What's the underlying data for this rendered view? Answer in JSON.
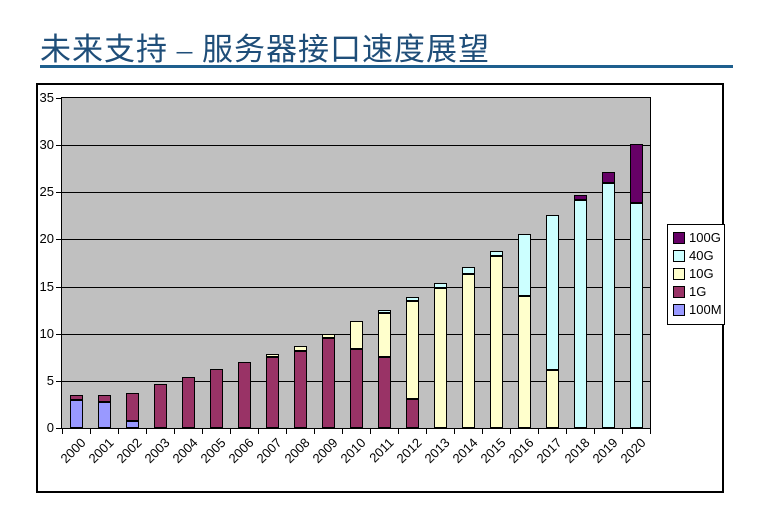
{
  "slide": {
    "title": "未来支持 – 服务器接口速度展望"
  },
  "theme": {
    "title_color": "#1F4E79",
    "rule_color": "#1E5F8E",
    "plot_background": "#C0C0C0",
    "gridline_color": "#000000"
  },
  "chart_data": {
    "type": "bar",
    "stacked": true,
    "title": "",
    "xlabel": "",
    "ylabel": "",
    "categories": [
      "2000",
      "2001",
      "2002",
      "2003",
      "2004",
      "2005",
      "2006",
      "2007",
      "2008",
      "2009",
      "2010",
      "2011",
      "2012",
      "2013",
      "2014",
      "2015",
      "2016",
      "2017",
      "2018",
      "2019",
      "2020"
    ],
    "series": [
      {
        "name": "100M",
        "color": "#9999FF",
        "values": [
          3.0,
          2.8,
          0.7,
          0,
          0,
          0,
          0,
          0,
          0,
          0,
          0,
          0,
          0,
          0,
          0,
          0,
          0,
          0,
          0,
          0,
          0
        ]
      },
      {
        "name": "1G",
        "color": "#993366",
        "values": [
          0.5,
          0.7,
          3.0,
          4.7,
          5.4,
          6.3,
          7.0,
          7.5,
          8.2,
          9.5,
          8.4,
          7.5,
          3.1,
          0,
          0,
          0,
          0,
          0,
          0,
          0,
          0
        ]
      },
      {
        "name": "10G",
        "color": "#FFFFCC",
        "values": [
          0,
          0,
          0,
          0,
          0,
          0,
          0,
          0.3,
          0.5,
          0.4,
          3.0,
          4.7,
          10.4,
          14.8,
          16.3,
          18.2,
          14.0,
          6.2,
          0,
          0,
          0
        ]
      },
      {
        "name": "40G",
        "color": "#CCFFFF",
        "values": [
          0,
          0,
          0,
          0,
          0,
          0,
          0,
          0,
          0,
          0,
          0,
          0.3,
          0.4,
          0.5,
          0.7,
          0.5,
          6.6,
          16.4,
          24.2,
          26.0,
          23.9
        ]
      },
      {
        "name": "100G",
        "color": "#660066",
        "values": [
          0,
          0,
          0,
          0,
          0,
          0,
          0,
          0,
          0,
          0,
          0,
          0,
          0,
          0,
          0,
          0,
          0,
          0,
          0.5,
          1.2,
          6.3
        ]
      }
    ],
    "legend_entries": [
      "100G",
      "40G",
      "10G",
      "1G",
      "100M"
    ],
    "legend_position": "right",
    "ylim": [
      0,
      35
    ],
    "ytick_step": 5,
    "yticks": [
      0,
      5,
      10,
      15,
      20,
      25,
      30,
      35
    ],
    "grid": true,
    "x_tick_label_rotation": -45
  }
}
